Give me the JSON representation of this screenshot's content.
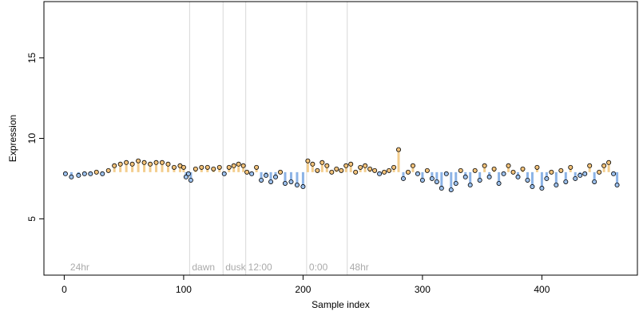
{
  "colors": {
    "above": "#f0c070",
    "below": "#6fa0e0",
    "point_fill_above": "#f2c27a",
    "point_fill_below": "#9cc0ec",
    "point_stroke": "#000000",
    "segment_line": "#d8d8d8",
    "segment_text": "#aaaaaa",
    "axis": "#000000"
  },
  "chart_data": {
    "type": "scatter",
    "title": "",
    "xlabel": "Sample index",
    "ylabel": "Expression",
    "xlim": [
      -17,
      480
    ],
    "ylim": [
      1.5,
      18.5
    ],
    "x_ticks": [
      0,
      100,
      200,
      300,
      400
    ],
    "x_tick_labels": [
      "0",
      "100",
      "200",
      "300",
      "400"
    ],
    "y_ticks": [
      5,
      10,
      15
    ],
    "y_tick_labels": [
      "5",
      "10",
      "15"
    ],
    "grid": false,
    "baseline": 7.9,
    "segments": [
      {
        "label": "24hr",
        "x": 3
      },
      {
        "label": "dawn",
        "x": 105
      },
      {
        "label": "dusk",
        "x": 133
      },
      {
        "label": "12:00",
        "x": 152
      },
      {
        "label": "0:00",
        "x": 203
      },
      {
        "label": "48hr",
        "x": 237
      }
    ],
    "segment_label_y": 2.0,
    "x": [
      1,
      6,
      12,
      17,
      22,
      27,
      32,
      37,
      42,
      47,
      52,
      57,
      62,
      67,
      72,
      77,
      82,
      87,
      92,
      97,
      100,
      102,
      104,
      106,
      110,
      115,
      120,
      125,
      130,
      134,
      138,
      142,
      146,
      150,
      153,
      157,
      161,
      165,
      169,
      173,
      177,
      181,
      185,
      190,
      195,
      200,
      204,
      208,
      212,
      216,
      220,
      224,
      228,
      232,
      236,
      240,
      244,
      248,
      252,
      256,
      260,
      264,
      268,
      272,
      276,
      280,
      284,
      288,
      292,
      296,
      300,
      304,
      308,
      312,
      316,
      320,
      324,
      328,
      332,
      336,
      340,
      344,
      348,
      352,
      356,
      360,
      364,
      368,
      372,
      376,
      380,
      384,
      388,
      392,
      396,
      400,
      404,
      408,
      412,
      416,
      420,
      424,
      428,
      432,
      436,
      440,
      444,
      448,
      452,
      456,
      460,
      463
    ],
    "y": [
      7.8,
      7.6,
      7.7,
      7.8,
      7.8,
      7.9,
      7.8,
      8.0,
      8.3,
      8.4,
      8.5,
      8.4,
      8.6,
      8.5,
      8.4,
      8.5,
      8.5,
      8.4,
      8.2,
      8.3,
      8.2,
      7.6,
      7.8,
      7.4,
      8.1,
      8.2,
      8.2,
      8.1,
      8.2,
      7.8,
      8.2,
      8.3,
      8.4,
      8.3,
      7.9,
      7.8,
      8.2,
      7.4,
      7.7,
      7.3,
      7.6,
      7.9,
      7.2,
      7.3,
      7.1,
      7.0,
      8.6,
      8.4,
      8.0,
      8.5,
      8.3,
      7.9,
      8.1,
      8.0,
      8.3,
      8.4,
      7.9,
      8.2,
      8.3,
      8.1,
      8.0,
      7.8,
      7.9,
      8.0,
      8.2,
      9.3,
      7.5,
      7.9,
      8.3,
      7.8,
      7.4,
      8.0,
      7.5,
      7.3,
      6.9,
      7.8,
      6.8,
      7.2,
      8.0,
      7.6,
      7.1,
      8.0,
      7.4,
      8.3,
      7.6,
      8.1,
      7.2,
      7.8,
      8.3,
      7.9,
      7.6,
      8.1,
      7.4,
      7.0,
      8.2,
      6.9,
      7.5,
      7.9,
      7.1,
      8.0,
      7.3,
      8.2,
      7.5,
      7.7,
      7.8,
      8.3,
      7.3,
      7.9,
      8.3,
      8.5,
      7.8,
      7.1
    ]
  }
}
